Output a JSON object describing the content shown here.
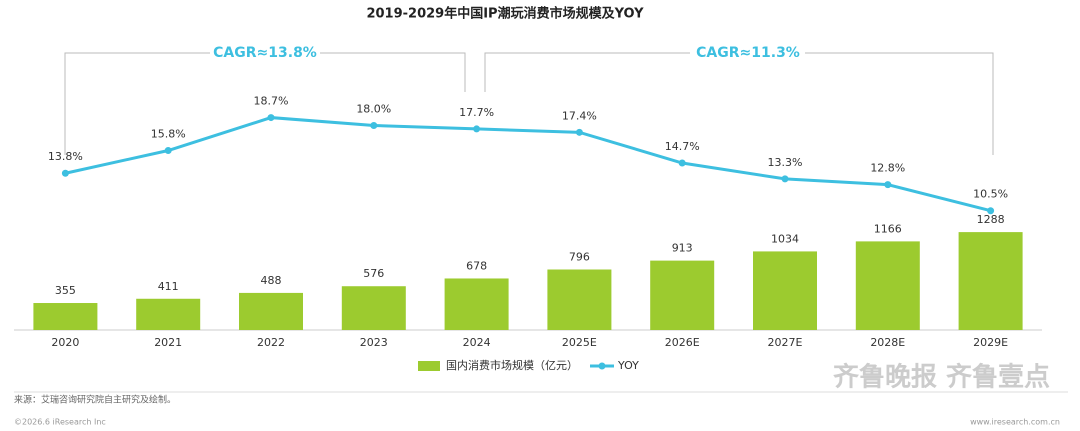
{
  "chart_data": {
    "type": "bar",
    "title": "2019-2029年中国IP潮玩消费市场规模及YOY",
    "categories": [
      "2020",
      "2021",
      "2022",
      "2023",
      "2024",
      "2025E",
      "2026E",
      "2027E",
      "2028E",
      "2029E"
    ],
    "series": [
      {
        "name": "国内消费市场规模（亿元）",
        "type": "bar",
        "color": "#9ccb2f",
        "values": [
          355,
          411,
          488,
          576,
          678,
          796,
          913,
          1034,
          1166,
          1288
        ]
      },
      {
        "name": "YOY",
        "type": "line",
        "axis": "y2",
        "color": "#3dbfe0",
        "values": [
          13.8,
          15.8,
          18.7,
          18.0,
          17.7,
          17.4,
          14.7,
          13.3,
          12.8,
          10.5
        ],
        "value_labels": [
          "13.8%",
          "15.8%",
          "18.7%",
          "18.0%",
          "17.7%",
          "17.4%",
          "14.7%",
          "13.3%",
          "12.8%",
          "10.5%"
        ]
      }
    ],
    "ylim": [
      0,
      4000
    ],
    "y2lim": [
      0,
      25
    ],
    "grid": false,
    "legend": "bottom",
    "annotations": [
      "CAGR≈13.8%",
      "CAGR≈11.3%"
    ],
    "source": "来源：艾瑞咨询研究院自主研究及绘制。",
    "copyright": "©2026.6 iResearch Inc",
    "website": "www.iresearch.com.cn",
    "watermark": "齐鲁晚报 齐鲁壹点"
  }
}
